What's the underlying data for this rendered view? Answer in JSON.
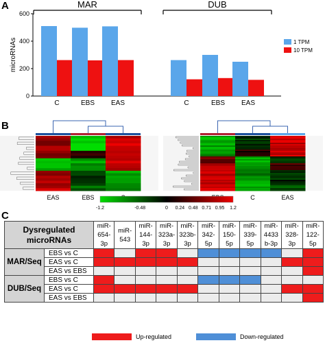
{
  "panels": {
    "a": "A",
    "b": "B",
    "c": "C"
  },
  "chart_data": {
    "type": "bar",
    "groups": [
      {
        "name": "MAR",
        "categories": [
          "C",
          "EBS",
          "EAS"
        ]
      },
      {
        "name": "DUB",
        "categories": [
          "C",
          "EBS",
          "EAS"
        ]
      }
    ],
    "series": [
      {
        "name": "1 TPM",
        "color": "#5aa6ea",
        "values": [
          510,
          498,
          508,
          262,
          300,
          250
        ]
      },
      {
        "name": "10 TPM",
        "color": "#ee1111",
        "values": [
          262,
          260,
          262,
          122,
          131,
          118
        ]
      }
    ],
    "ylabel": "microRNAs",
    "ylim": [
      0,
      600
    ],
    "yticks": [
      "0",
      "200",
      "400",
      "600"
    ],
    "legend_position": "right"
  },
  "heatmap": {
    "left_labels": [
      "EAS",
      "EBS",
      "C"
    ],
    "right_labels": [
      "EBS",
      "C",
      "EAS"
    ],
    "scale_ticks": [
      "-1.2",
      "-0.48",
      "0",
      "0.24",
      "0.48",
      "0.71",
      "0.95",
      "1.2"
    ],
    "colors": {
      "low": "#00dd00",
      "mid": "#000000",
      "high": "#ee0000"
    }
  },
  "table": {
    "corner": "Dysregulated\nmicroRNAs",
    "mirnas": [
      "miR-\n654-\n3p",
      "miR-\n543",
      "miR-\n144-\n3p",
      "miR-\n323a-\n3p",
      "miR-\n323b-\n3p",
      "miR-\n342-\n5p",
      "miR-\n150-\n5p",
      "miR-\n339-\n5p",
      "miR-\n4433\nb-3p",
      "miR-\n328-\n3p",
      "miR-\n122-\n5p"
    ],
    "groups": [
      {
        "name": "MAR/Seq",
        "rows": [
          {
            "label": "EBS vs C",
            "cells": [
              "up",
              "none",
              "up",
              "up",
              "none",
              "down",
              "down",
              "down",
              "down",
              "none",
              "up"
            ]
          },
          {
            "label": "EAS vs C",
            "cells": [
              "up",
              "up",
              "up",
              "up",
              "up",
              "none",
              "none",
              "none",
              "none",
              "up",
              "up"
            ]
          },
          {
            "label": "EAS vs EBS",
            "cells": [
              "none",
              "none",
              "none",
              "none",
              "none",
              "none",
              "none",
              "none",
              "none",
              "none",
              "up"
            ]
          }
        ]
      },
      {
        "name": "DUB/Seq",
        "rows": [
          {
            "label": "EBS vs C",
            "cells": [
              "up",
              "none",
              "none",
              "none",
              "none",
              "down",
              "down",
              "down",
              "none",
              "none",
              "none"
            ]
          },
          {
            "label": "EAS vs C",
            "cells": [
              "up",
              "up",
              "up",
              "up",
              "up",
              "none",
              "none",
              "none",
              "none",
              "up",
              "up"
            ]
          },
          {
            "label": "EAS vs EBS",
            "cells": [
              "none",
              "none",
              "none",
              "none",
              "none",
              "none",
              "none",
              "none",
              "none",
              "none",
              "up"
            ]
          }
        ]
      }
    ],
    "legend": {
      "up": "Up-regulated",
      "down": "Down-regulated"
    }
  }
}
